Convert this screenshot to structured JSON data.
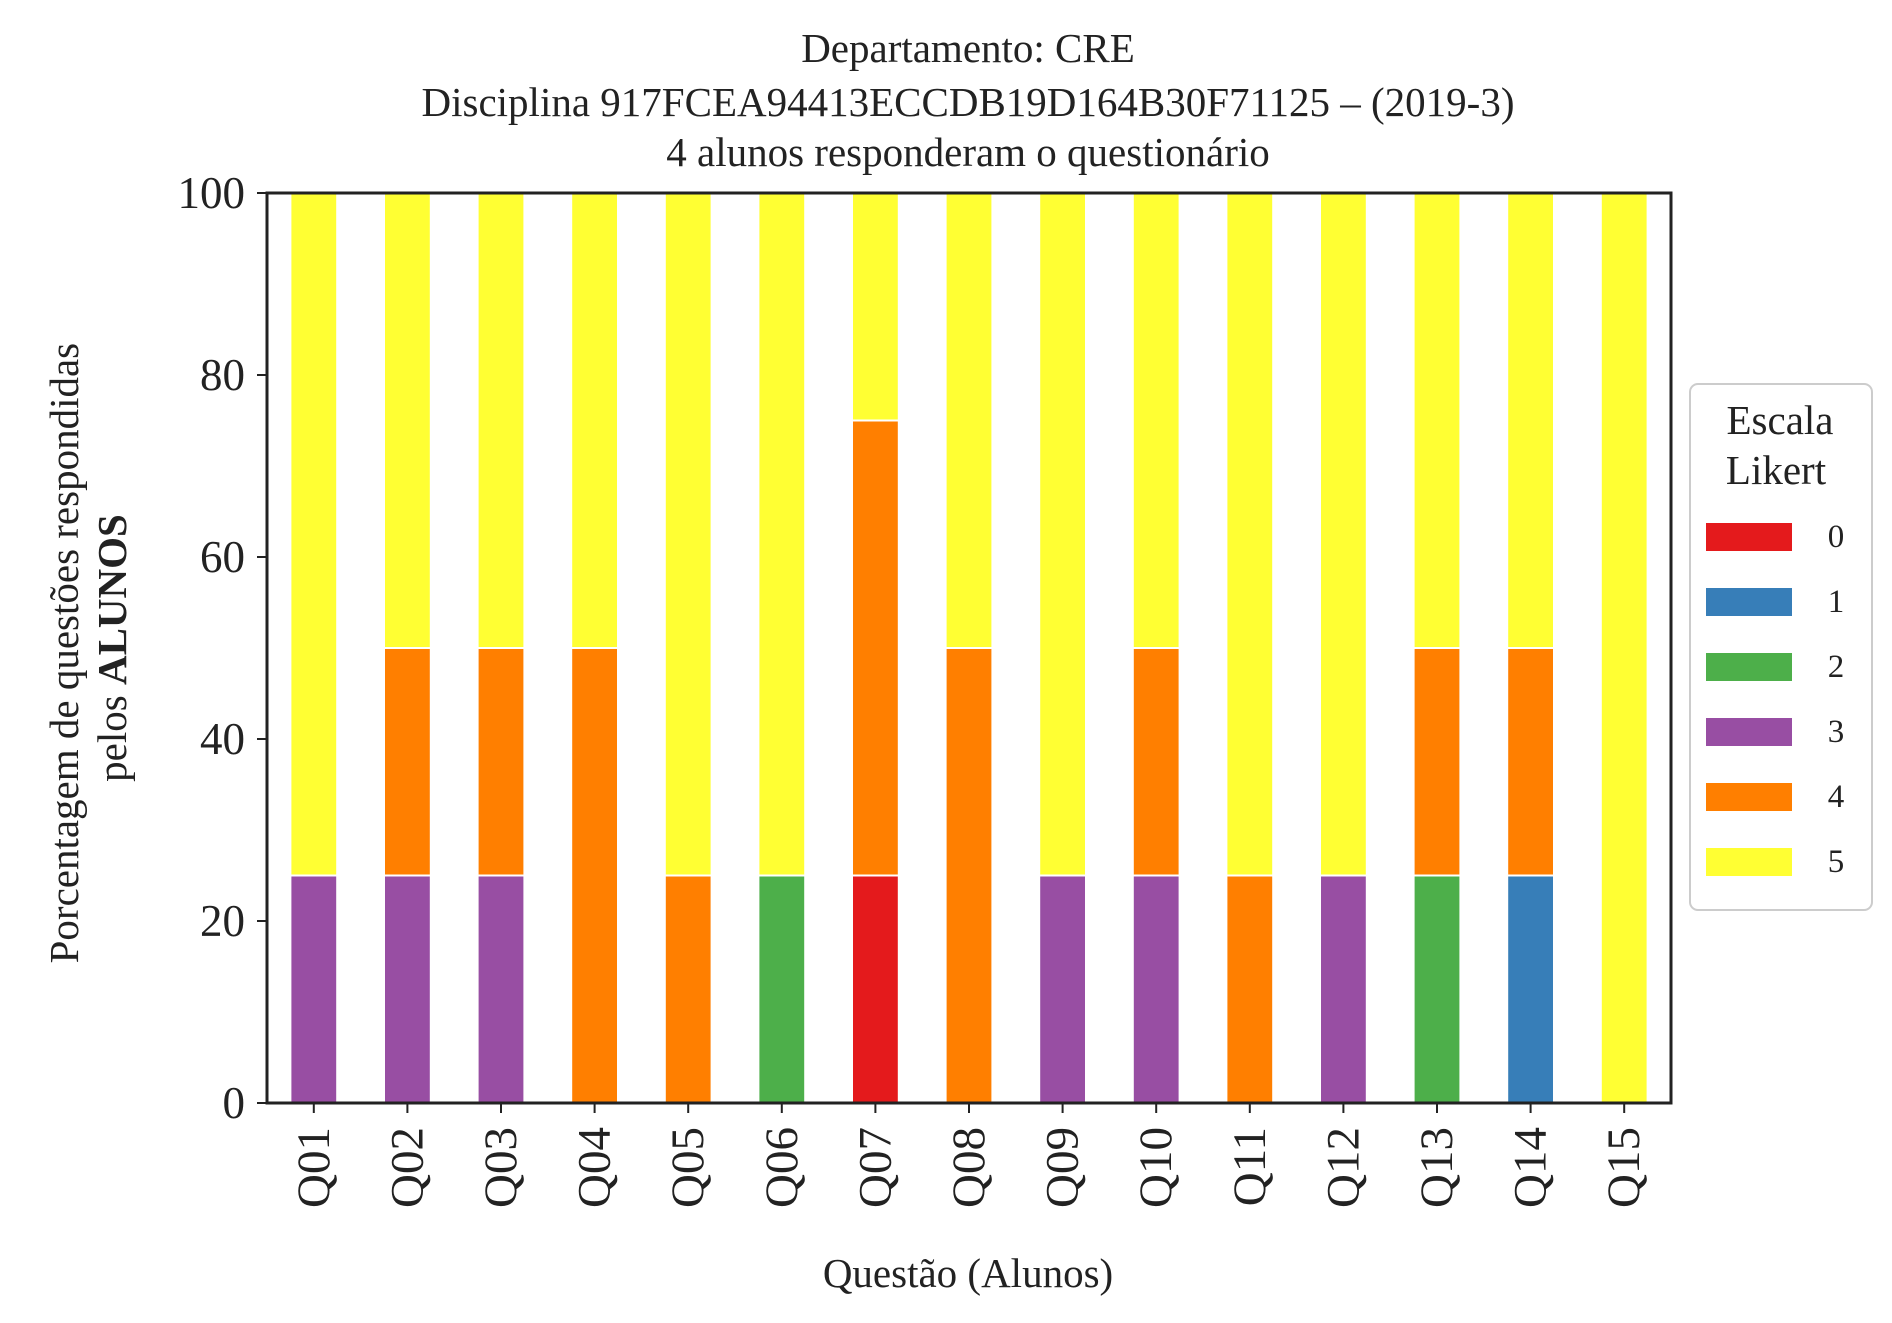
{
  "chart_data": {
    "type": "bar",
    "stacked": true,
    "title": [
      "Departamento: CRE",
      "Disciplina 917FCEA94413ECCDB19D164B30F71125 – (2019-3)",
      "4 alunos responderam o questionário"
    ],
    "xlabel": "Questão (Alunos)",
    "ylabel": {
      "line1": "Porcentagem de questões respondidas",
      "line2_prefix": "pelos ",
      "line2_bold": "ALUNOS"
    },
    "ylim": [
      0,
      100
    ],
    "yticks": [
      "0",
      "20",
      "40",
      "60",
      "80",
      "100"
    ],
    "ytick_values": [
      0,
      20,
      40,
      60,
      80,
      100
    ],
    "grid": false,
    "legend_placement": "right",
    "categories": [
      "Q01",
      "Q02",
      "Q03",
      "Q04",
      "Q05",
      "Q06",
      "Q07",
      "Q08",
      "Q09",
      "Q10",
      "Q11",
      "Q12",
      "Q13",
      "Q14",
      "Q15"
    ],
    "legend": {
      "title": [
        "Escala",
        "Likert"
      ]
    },
    "series": [
      {
        "name": "0",
        "color": "#e41a1c",
        "values": [
          0,
          0,
          0,
          0,
          0,
          0,
          25,
          0,
          0,
          0,
          0,
          0,
          0,
          0,
          0
        ]
      },
      {
        "name": "1",
        "color": "#377eb8",
        "values": [
          0,
          0,
          0,
          0,
          0,
          0,
          0,
          0,
          0,
          0,
          0,
          0,
          0,
          25,
          0
        ]
      },
      {
        "name": "2",
        "color": "#4daf4a",
        "values": [
          0,
          0,
          0,
          0,
          0,
          25,
          0,
          0,
          0,
          0,
          0,
          0,
          25,
          0,
          0
        ]
      },
      {
        "name": "3",
        "color": "#984ea3",
        "values": [
          25,
          25,
          25,
          0,
          0,
          0,
          0,
          0,
          25,
          25,
          0,
          25,
          0,
          0,
          0
        ]
      },
      {
        "name": "4",
        "color": "#ff7f00",
        "values": [
          0,
          25,
          25,
          50,
          25,
          0,
          50,
          50,
          0,
          25,
          25,
          0,
          25,
          25,
          0
        ]
      },
      {
        "name": "5",
        "color": "#ffff33",
        "values": [
          75,
          50,
          50,
          50,
          75,
          75,
          25,
          50,
          75,
          50,
          75,
          75,
          50,
          50,
          100
        ]
      }
    ]
  }
}
